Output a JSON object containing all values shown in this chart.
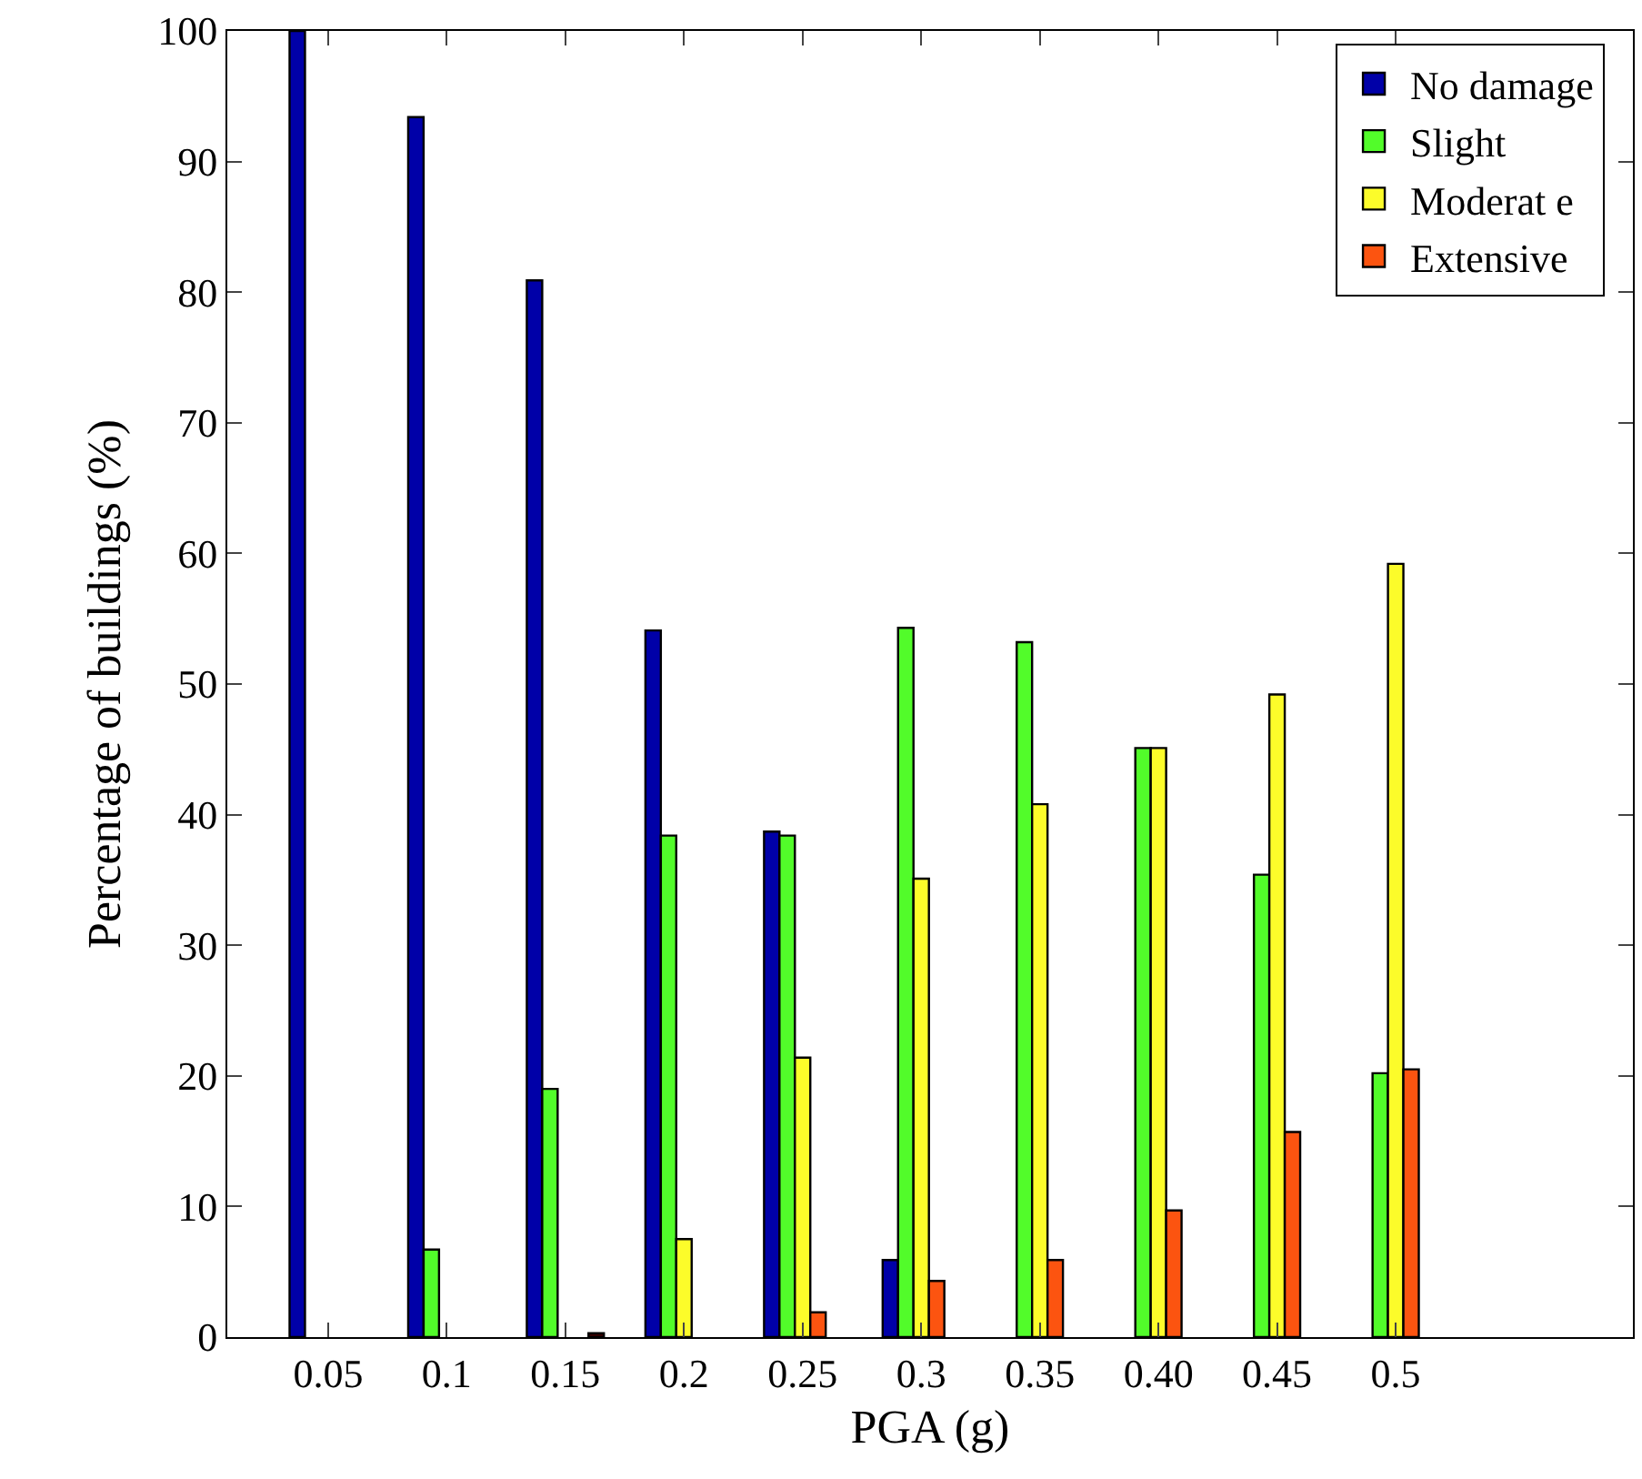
{
  "chart_data": {
    "type": "bar",
    "xlabel": "PGA (g)",
    "ylabel": "Percentage of buildings (%)",
    "categories": [
      "0.05",
      "0.1",
      "0.15",
      "0.2",
      "0.25",
      "0.3",
      "0.35",
      "0.40",
      "0.45",
      "0.5"
    ],
    "series": [
      {
        "name": "No damage",
        "color": "#0000a8",
        "values": [
          100,
          93.4,
          80.9,
          54.1,
          38.7,
          5.9,
          null,
          null,
          null,
          null
        ]
      },
      {
        "name": "Slight",
        "color": "#52fc2a",
        "values": [
          null,
          6.7,
          19.0,
          38.4,
          38.4,
          54.3,
          53.2,
          45.1,
          35.4,
          20.2
        ]
      },
      {
        "name": "Moderat e",
        "color": "#fcfc2a",
        "values": [
          null,
          null,
          null,
          7.5,
          21.4,
          35.1,
          40.8,
          45.1,
          49.2,
          59.2
        ]
      },
      {
        "name": "Extensive",
        "color": "#fc5410",
        "values": [
          null,
          null,
          null,
          null,
          1.9,
          4.3,
          5.9,
          9.7,
          15.7,
          20.5
        ]
      },
      {
        "color": "#3a0000",
        "values": [
          null,
          null,
          0.3,
          null,
          null,
          null,
          null,
          null,
          null,
          null
        ]
      }
    ],
    "ylim": [
      0,
      100
    ],
    "yticks": [
      0,
      10,
      20,
      30,
      40,
      50,
      60,
      70,
      80,
      90,
      100
    ],
    "grid": false,
    "legend": "top right"
  }
}
